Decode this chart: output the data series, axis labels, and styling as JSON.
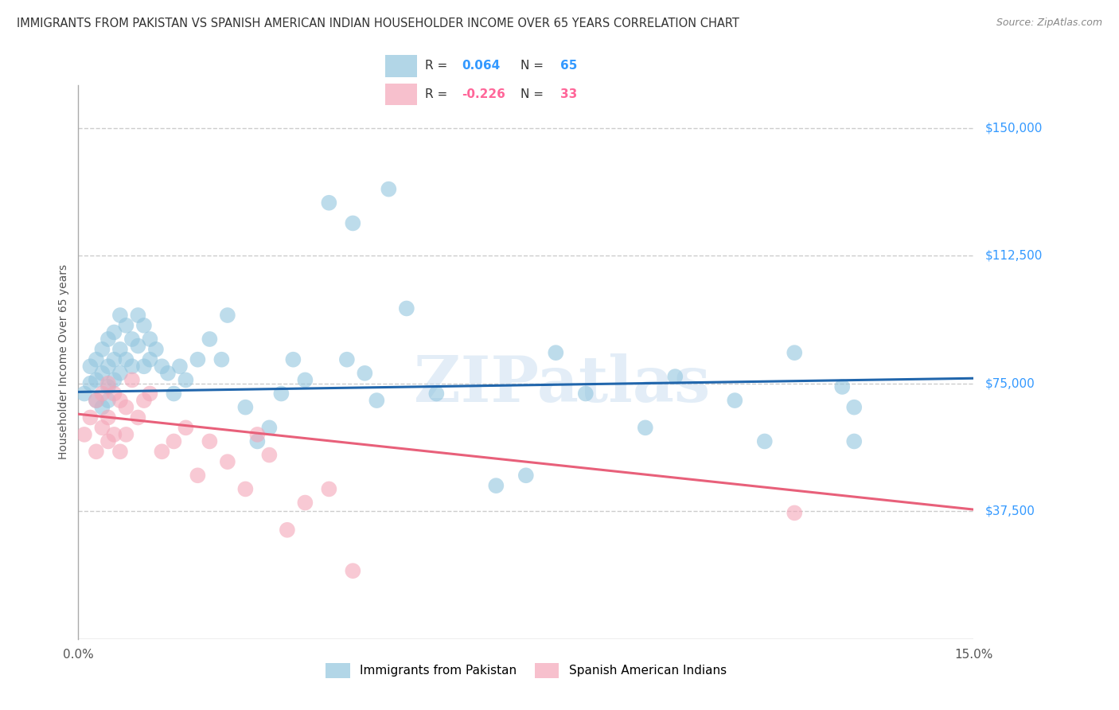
{
  "title": "IMMIGRANTS FROM PAKISTAN VS SPANISH AMERICAN INDIAN HOUSEHOLDER INCOME OVER 65 YEARS CORRELATION CHART",
  "source": "Source: ZipAtlas.com",
  "ylabel": "Householder Income Over 65 years",
  "ytick_labels": [
    "$37,500",
    "$75,000",
    "$112,500",
    "$150,000"
  ],
  "ytick_values": [
    37500,
    75000,
    112500,
    150000
  ],
  "ylim": [
    0,
    162500
  ],
  "xlim": [
    0,
    0.15
  ],
  "watermark": "ZIPatlas",
  "blue_R": "0.064",
  "blue_N": "65",
  "pink_R": "-0.226",
  "pink_N": "33",
  "blue_color": "#92c5de",
  "pink_color": "#f4a6b8",
  "blue_line_color": "#2166ac",
  "pink_line_color": "#e8607a",
  "blue_label": "Immigrants from Pakistan",
  "pink_label": "Spanish American Indians",
  "legend_R_color_blue": "#3399ff",
  "legend_R_color_pink": "#ff6699",
  "background_color": "#ffffff",
  "grid_color": "#cccccc",
  "title_color": "#333333",
  "blue_scatter_x": [
    0.001,
    0.002,
    0.002,
    0.003,
    0.003,
    0.003,
    0.004,
    0.004,
    0.004,
    0.005,
    0.005,
    0.005,
    0.005,
    0.006,
    0.006,
    0.006,
    0.007,
    0.007,
    0.007,
    0.008,
    0.008,
    0.009,
    0.009,
    0.01,
    0.01,
    0.011,
    0.011,
    0.012,
    0.012,
    0.013,
    0.014,
    0.015,
    0.016,
    0.017,
    0.018,
    0.02,
    0.022,
    0.024,
    0.025,
    0.028,
    0.03,
    0.032,
    0.034,
    0.036,
    0.038,
    0.042,
    0.046,
    0.052,
    0.055,
    0.045,
    0.048,
    0.05,
    0.06,
    0.07,
    0.075,
    0.08,
    0.085,
    0.095,
    0.1,
    0.11,
    0.115,
    0.12,
    0.128,
    0.13,
    0.13
  ],
  "blue_scatter_y": [
    72000,
    80000,
    75000,
    82000,
    76000,
    70000,
    85000,
    78000,
    68000,
    88000,
    80000,
    74000,
    70000,
    90000,
    82000,
    76000,
    95000,
    85000,
    78000,
    92000,
    82000,
    88000,
    80000,
    95000,
    86000,
    92000,
    80000,
    88000,
    82000,
    85000,
    80000,
    78000,
    72000,
    80000,
    76000,
    82000,
    88000,
    82000,
    95000,
    68000,
    58000,
    62000,
    72000,
    82000,
    76000,
    128000,
    122000,
    132000,
    97000,
    82000,
    78000,
    70000,
    72000,
    45000,
    48000,
    84000,
    72000,
    62000,
    77000,
    70000,
    58000,
    84000,
    74000,
    58000,
    68000
  ],
  "pink_scatter_x": [
    0.001,
    0.002,
    0.003,
    0.003,
    0.004,
    0.004,
    0.005,
    0.005,
    0.005,
    0.006,
    0.006,
    0.007,
    0.007,
    0.008,
    0.008,
    0.009,
    0.01,
    0.011,
    0.012,
    0.014,
    0.016,
    0.018,
    0.02,
    0.022,
    0.025,
    0.028,
    0.03,
    0.032,
    0.035,
    0.038,
    0.042,
    0.046,
    0.12
  ],
  "pink_scatter_y": [
    60000,
    65000,
    70000,
    55000,
    72000,
    62000,
    75000,
    65000,
    58000,
    72000,
    60000,
    70000,
    55000,
    68000,
    60000,
    76000,
    65000,
    70000,
    72000,
    55000,
    58000,
    62000,
    48000,
    58000,
    52000,
    44000,
    60000,
    54000,
    32000,
    40000,
    44000,
    20000,
    37000
  ],
  "blue_line_y0": 72500,
  "blue_line_y1": 76500,
  "pink_line_y0": 66000,
  "pink_line_y1": 38000
}
